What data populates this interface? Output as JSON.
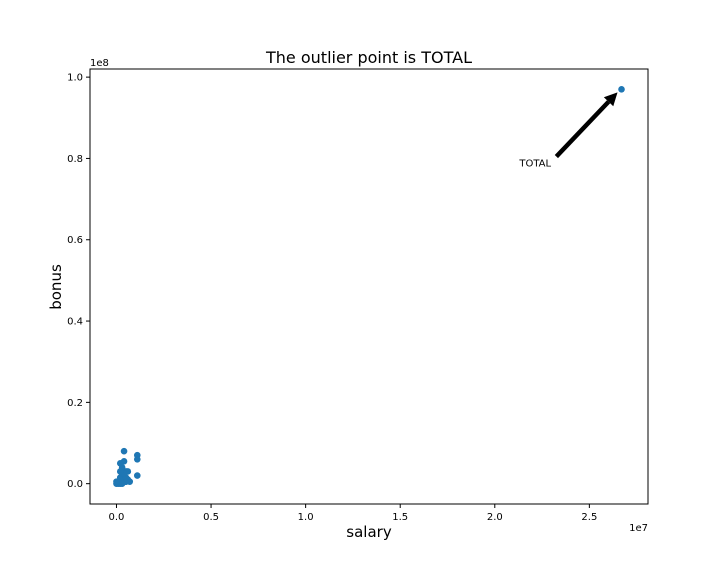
{
  "chart_data": {
    "type": "scatter",
    "title": "The outlier point is TOTAL",
    "xlabel": "salary",
    "ylabel": "bonus",
    "x_offset_label": "1e7",
    "y_offset_label": "1e8",
    "xlim": [
      -0.14,
      2.81
    ],
    "ylim": [
      -0.05,
      1.02
    ],
    "x_ticks": [
      0.0,
      0.5,
      1.0,
      1.5,
      2.0,
      2.5
    ],
    "x_tick_labels": [
      "0.0",
      "0.5",
      "1.0",
      "1.5",
      "2.0",
      "2.5"
    ],
    "y_ticks": [
      0.0,
      0.2,
      0.4,
      0.6,
      0.8,
      1.0
    ],
    "y_tick_labels": [
      "0.0",
      "0.2",
      "0.4",
      "0.6",
      "0.8",
      "1.0"
    ],
    "grid": false,
    "point_color": "#1f77b4",
    "x": [
      2.67,
      0.04,
      0.04,
      0.11,
      0.11,
      0.11,
      0.06,
      0.05,
      0.03,
      0.05,
      0.02,
      0.03,
      0.0,
      0.0,
      0.01,
      0.02,
      0.05,
      0.07,
      0.04,
      0.03,
      0.04,
      0.03,
      0.02,
      0.01,
      0.06,
      0.05,
      0.04,
      0.02,
      0.03,
      0.02
    ],
    "y": [
      0.97,
      0.08,
      0.055,
      0.07,
      0.06,
      0.02,
      0.03,
      0.03,
      0.04,
      0.005,
      0.015,
      0.01,
      0.0,
      0.005,
      0.0,
      0.0,
      0.005,
      0.005,
      0.01,
      0.02,
      0.02,
      0.025,
      0.01,
      0.005,
      0.01,
      0.015,
      0.025,
      0.03,
      0.0,
      0.05
    ],
    "annotation": {
      "text": "TOTAL",
      "point": [
        2.67,
        0.97
      ],
      "text_position": [
        2.13,
        0.78
      ]
    }
  }
}
